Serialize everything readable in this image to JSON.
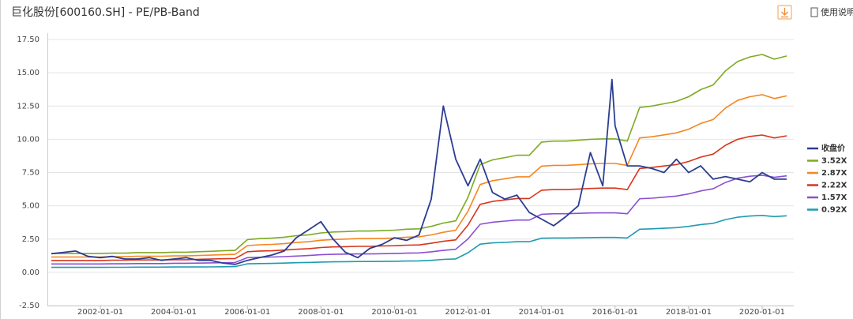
{
  "chart_data": {
    "type": "line",
    "title": "巨化股份[600160.SH] - PE/PB-Band",
    "help_label": "使用说明",
    "x": [
      "2000-09-01",
      "2001-01-01",
      "2001-05-01",
      "2001-09-01",
      "2002-01-01",
      "2002-05-01",
      "2002-09-01",
      "2003-01-01",
      "2003-05-01",
      "2003-09-01",
      "2004-01-01",
      "2004-05-01",
      "2004-09-01",
      "2005-01-01",
      "2005-05-01",
      "2005-09-01",
      "2006-01-01",
      "2006-05-01",
      "2006-09-01",
      "2007-01-01",
      "2007-05-01",
      "2007-09-01",
      "2008-01-01",
      "2008-05-01",
      "2008-09-01",
      "2009-01-01",
      "2009-05-01",
      "2009-09-01",
      "2010-01-01",
      "2010-05-01",
      "2010-09-01",
      "2011-01-01",
      "2011-05-01",
      "2011-09-01",
      "2012-01-01",
      "2012-05-01",
      "2012-09-01",
      "2013-01-01",
      "2013-05-01",
      "2013-09-01",
      "2014-01-01",
      "2014-05-01",
      "2014-09-01",
      "2015-01-01",
      "2015-05-01",
      "2015-09-01",
      "2015-12-01",
      "2016-01-01",
      "2016-05-01",
      "2016-09-01",
      "2017-01-01",
      "2017-05-01",
      "2017-09-01",
      "2018-01-01",
      "2018-05-01",
      "2018-09-01",
      "2019-01-01",
      "2019-05-01",
      "2019-09-01",
      "2020-01-01",
      "2020-05-01",
      "2020-09-01"
    ],
    "xlim": [
      "2000-07-24",
      "2020-11-10"
    ],
    "xticks": [
      "2002-01-01",
      "2004-01-01",
      "2006-01-01",
      "2008-01-01",
      "2010-01-01",
      "2012-01-01",
      "2014-01-01",
      "2016-01-01",
      "2018-01-01",
      "2020-01-01"
    ],
    "ylim": [
      -2.5,
      17.5
    ],
    "yticks": [
      {
        "value": -2.5,
        "label": "-2.50"
      },
      {
        "value": 0,
        "label": "0.00"
      },
      {
        "value": 2.5,
        "label": "2.50"
      },
      {
        "value": 5,
        "label": "5.00"
      },
      {
        "value": 7.5,
        "label": "7.50"
      },
      {
        "value": 10,
        "label": "10.00"
      },
      {
        "value": 12.5,
        "label": "12.50"
      },
      {
        "value": 15,
        "label": "15.00"
      },
      {
        "value": 17.5,
        "label": "17.50"
      }
    ],
    "grid": true,
    "legend": "right",
    "series": [
      {
        "name": "收盘价",
        "color": "#2b3d92",
        "values": [
          1.4,
          1.5,
          1.6,
          1.2,
          1.1,
          1.2,
          1.0,
          1.0,
          1.1,
          0.9,
          1.0,
          1.1,
          0.9,
          0.9,
          0.7,
          0.6,
          0.9,
          1.1,
          1.3,
          1.6,
          2.6,
          3.2,
          3.8,
          2.5,
          1.5,
          1.1,
          1.8,
          2.1,
          2.6,
          2.4,
          2.8,
          5.5,
          12.5,
          8.5,
          6.5,
          8.5,
          6.0,
          5.5,
          5.8,
          4.5,
          4.0,
          3.5,
          4.2,
          5.0,
          9.0,
          6.5,
          14.5,
          11.0,
          8.0,
          8.0,
          7.8,
          7.5,
          8.5,
          7.5,
          8.0,
          7.0,
          7.2,
          7.0,
          6.8,
          7.5,
          7.0,
          7.0
        ]
      },
      {
        "name": "3.52X",
        "color": "#7cab21",
        "values": [
          1.41,
          1.41,
          1.41,
          1.41,
          1.41,
          1.44,
          1.44,
          1.48,
          1.48,
          1.48,
          1.51,
          1.51,
          1.55,
          1.58,
          1.62,
          1.65,
          2.46,
          2.53,
          2.57,
          2.64,
          2.75,
          2.82,
          2.96,
          3.03,
          3.06,
          3.1,
          3.1,
          3.13,
          3.17,
          3.24,
          3.27,
          3.45,
          3.7,
          3.87,
          5.63,
          8.1,
          8.45,
          8.62,
          8.8,
          8.8,
          9.79,
          9.86,
          9.86,
          9.93,
          10.0,
          10.03,
          10.03,
          10.03,
          9.86,
          12.39,
          12.5,
          12.67,
          12.85,
          13.2,
          13.73,
          14.08,
          15.14,
          15.84,
          16.19,
          16.37,
          16.02,
          16.26
        ]
      },
      {
        "name": "2.87X",
        "color": "#f5861f",
        "values": [
          1.15,
          1.15,
          1.15,
          1.15,
          1.15,
          1.18,
          1.18,
          1.21,
          1.21,
          1.21,
          1.23,
          1.23,
          1.26,
          1.29,
          1.32,
          1.35,
          2.01,
          2.07,
          2.1,
          2.15,
          2.24,
          2.3,
          2.41,
          2.47,
          2.5,
          2.53,
          2.53,
          2.55,
          2.58,
          2.64,
          2.67,
          2.81,
          3.01,
          3.16,
          4.59,
          6.6,
          6.89,
          7.03,
          7.18,
          7.18,
          7.98,
          8.04,
          8.04,
          8.09,
          8.15,
          8.18,
          8.18,
          8.18,
          8.04,
          10.1,
          10.19,
          10.33,
          10.48,
          10.76,
          11.19,
          11.48,
          12.34,
          12.92,
          13.2,
          13.35,
          13.06,
          13.26
        ]
      },
      {
        "name": "2.22X",
        "color": "#d9341c",
        "values": [
          0.89,
          0.89,
          0.89,
          0.89,
          0.89,
          0.91,
          0.91,
          0.93,
          0.93,
          0.93,
          0.95,
          0.95,
          0.98,
          1.0,
          1.02,
          1.04,
          1.55,
          1.6,
          1.62,
          1.67,
          1.73,
          1.78,
          1.86,
          1.91,
          1.93,
          1.95,
          1.95,
          1.98,
          2.0,
          2.04,
          2.06,
          2.18,
          2.33,
          2.44,
          3.55,
          5.11,
          5.33,
          5.44,
          5.55,
          5.55,
          6.17,
          6.22,
          6.22,
          6.26,
          6.3,
          6.33,
          6.33,
          6.33,
          6.22,
          7.81,
          7.88,
          7.99,
          8.1,
          8.33,
          8.66,
          8.88,
          9.55,
          9.99,
          10.21,
          10.32,
          10.1,
          10.26
        ]
      },
      {
        "name": "1.57X",
        "color": "#8b4fd3",
        "values": [
          0.63,
          0.63,
          0.63,
          0.63,
          0.63,
          0.64,
          0.64,
          0.66,
          0.66,
          0.66,
          0.68,
          0.68,
          0.69,
          0.71,
          0.72,
          0.74,
          1.1,
          1.13,
          1.15,
          1.18,
          1.22,
          1.26,
          1.32,
          1.35,
          1.37,
          1.38,
          1.38,
          1.4,
          1.41,
          1.44,
          1.46,
          1.54,
          1.65,
          1.73,
          2.51,
          3.61,
          3.77,
          3.85,
          3.93,
          3.93,
          4.36,
          4.4,
          4.4,
          4.43,
          4.46,
          4.47,
          4.47,
          4.47,
          4.4,
          5.53,
          5.57,
          5.65,
          5.73,
          5.89,
          6.12,
          6.28,
          6.75,
          7.07,
          7.22,
          7.3,
          7.14,
          7.25
        ]
      },
      {
        "name": "0.92X",
        "color": "#1e9bb0",
        "values": [
          0.37,
          0.37,
          0.37,
          0.37,
          0.37,
          0.38,
          0.38,
          0.39,
          0.39,
          0.39,
          0.4,
          0.4,
          0.4,
          0.41,
          0.42,
          0.43,
          0.64,
          0.66,
          0.67,
          0.69,
          0.72,
          0.74,
          0.77,
          0.79,
          0.8,
          0.81,
          0.81,
          0.82,
          0.83,
          0.85,
          0.86,
          0.9,
          0.97,
          1.01,
          1.47,
          2.12,
          2.21,
          2.25,
          2.3,
          2.3,
          2.56,
          2.58,
          2.58,
          2.59,
          2.61,
          2.62,
          2.62,
          2.62,
          2.58,
          3.24,
          3.27,
          3.31,
          3.36,
          3.45,
          3.59,
          3.68,
          3.96,
          4.14,
          4.23,
          4.28,
          4.19,
          4.25
        ]
      }
    ]
  }
}
